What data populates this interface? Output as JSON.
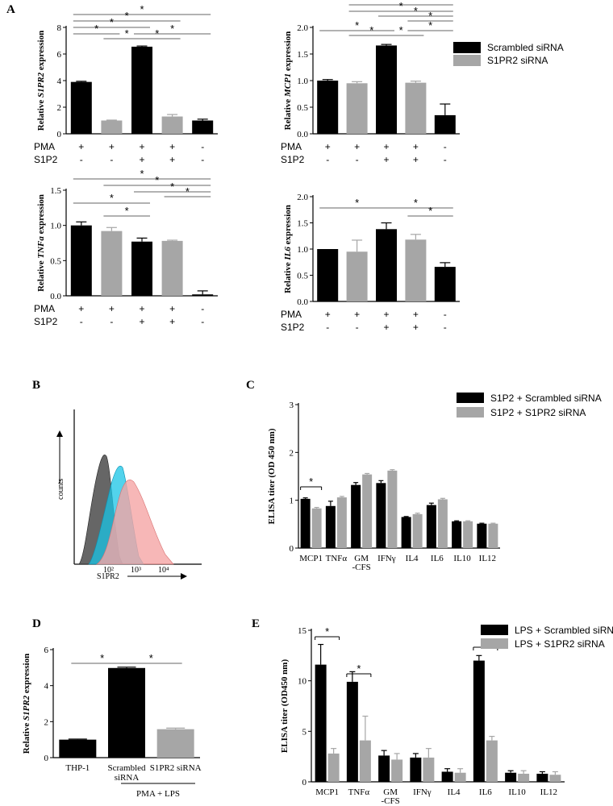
{
  "colors": {
    "black_bar": "#000000",
    "gray_bar": "#a6a6a6",
    "axis": "#000000",
    "flow_gray": "#555555",
    "flow_cyan": "#18c4e6",
    "flow_pink": "#f5a5a5"
  },
  "panels": {
    "A": "A",
    "B": "B",
    "C": "C",
    "D": "D",
    "E": "E"
  },
  "legends": {
    "A": [
      "Scrambled siRNA",
      "S1PR2 siRNA"
    ],
    "C": [
      "S1P2 + Scrambled siRNA",
      "S1P2 + S1PR2 siRNA"
    ],
    "E": [
      "LPS + Scrambled siRNA",
      "LPS + S1PR2 siRNA"
    ]
  },
  "conditions": {
    "PMA": {
      "label": "PMA",
      "signs": [
        "+",
        "+",
        "+",
        "+",
        "-"
      ]
    },
    "S1P2": {
      "label": "S1P2",
      "signs": [
        "-",
        "-",
        "+",
        "+",
        "-"
      ]
    }
  },
  "significance_marker": "*",
  "flow": {
    "xlabel": "S1PR2",
    "ylabel": "counts",
    "ticks": [
      "10²",
      "10³",
      "10⁴"
    ]
  },
  "panel_D_group_label": "PMA + LPS",
  "chart_data": [
    {
      "id": "A1",
      "type": "bar",
      "ylabel_italic": "S1PR2",
      "ylabel_pre": "Relative ",
      "ylabel_post": " expression",
      "ylim": [
        0,
        8
      ],
      "yticks": [
        "0",
        "2",
        "4",
        "6",
        "8"
      ],
      "values": [
        3.9,
        1.0,
        6.55,
        1.3,
        1.0
      ],
      "errors": [
        0.05,
        0.03,
        0.05,
        0.15,
        0.1
      ],
      "colors": [
        "black",
        "gray",
        "black",
        "gray",
        "black"
      ],
      "sig": [
        [
          0,
          4
        ],
        [
          0,
          3
        ],
        [
          0,
          2
        ],
        [
          0,
          1
        ],
        [
          1,
          2
        ],
        [
          2,
          3
        ],
        [
          2,
          4
        ]
      ]
    },
    {
      "id": "A2",
      "type": "bar",
      "ylabel_italic": "MCP1",
      "ylabel_pre": "Relative ",
      "ylabel_post": " expression",
      "ylim": [
        0,
        2.0
      ],
      "yticks": [
        "0.0",
        "0.5",
        "1.0",
        "1.5",
        "2.0"
      ],
      "values": [
        1.0,
        0.95,
        1.66,
        0.96,
        0.35
      ],
      "errors": [
        0.02,
        0.03,
        0.02,
        0.03,
        0.21
      ],
      "colors": [
        "black",
        "gray",
        "black",
        "gray",
        "black"
      ],
      "sig": [
        [
          1,
          4
        ],
        [
          1,
          4
        ],
        [
          2,
          4
        ],
        [
          3,
          4
        ],
        [
          0,
          2
        ],
        [
          1,
          2
        ],
        [
          2,
          3
        ],
        [
          3,
          4
        ]
      ]
    },
    {
      "id": "A3",
      "type": "bar",
      "ylabel_italic": "TNFa",
      "ylabel_pre": "Relative ",
      "ylabel_post": " expression",
      "ylim": [
        0,
        1.5
      ],
      "yticks": [
        "0.0",
        "0.5",
        "1.0",
        "1.5"
      ],
      "values": [
        1.0,
        0.92,
        0.77,
        0.78,
        0.02
      ],
      "errors": [
        0.05,
        0.05,
        0.05,
        0.01,
        0.05
      ],
      "colors": [
        "black",
        "gray",
        "black",
        "gray",
        "black"
      ],
      "sig": [
        [
          0,
          4
        ],
        [
          1,
          4
        ],
        [
          2,
          4
        ],
        [
          3,
          4
        ],
        [
          0,
          2
        ],
        [
          1,
          2
        ]
      ]
    },
    {
      "id": "A4",
      "type": "bar",
      "ylabel_italic": "IL6",
      "ylabel_pre": "Relative ",
      "ylabel_post": " expression",
      "ylim": [
        0,
        2.0
      ],
      "yticks": [
        "0.0",
        "0.5",
        "1.0",
        "1.5",
        "2.0"
      ],
      "values": [
        1.0,
        0.95,
        1.38,
        1.18,
        0.66
      ],
      "errors": [
        0.0,
        0.22,
        0.12,
        0.1,
        0.08
      ],
      "colors": [
        "black",
        "gray",
        "black",
        "gray",
        "black"
      ],
      "sig": [
        [
          0,
          2
        ],
        [
          2,
          4
        ],
        [
          3,
          4
        ]
      ]
    },
    {
      "id": "C",
      "type": "bar",
      "ylabel": "ELISA titer (OD 450 nm)",
      "ylim": [
        0,
        3
      ],
      "yticks": [
        "0",
        "1",
        "2",
        "3"
      ],
      "categories": [
        "MCP1",
        "TNFα",
        "GM\n-CFS",
        "IFNγ",
        "IL4",
        "IL6",
        "IL10",
        "IL12"
      ],
      "series": [
        {
          "name": "S1P2 + Scrambled siRNA",
          "values": [
            1.03,
            0.88,
            1.32,
            1.36,
            0.65,
            0.9,
            0.56,
            0.51
          ],
          "errors": [
            0.02,
            0.1,
            0.05,
            0.05,
            0.01,
            0.04,
            0.01,
            0.01
          ]
        },
        {
          "name": "S1P2 + S1PR2 siRNA",
          "values": [
            0.83,
            1.06,
            1.54,
            1.62,
            0.71,
            1.02,
            0.56,
            0.51
          ],
          "errors": [
            0.02,
            0.02,
            0.02,
            0.02,
            0.02,
            0.02,
            0.01,
            0.01
          ]
        }
      ],
      "sig": [
        0
      ]
    },
    {
      "id": "D",
      "type": "bar",
      "ylabel_italic": "S1PR2",
      "ylabel_pre": "Relative ",
      "ylabel_post": " expression",
      "ylim": [
        0,
        6
      ],
      "yticks": [
        "0",
        "2",
        "4",
        "6"
      ],
      "categories": [
        "THP-1",
        "Scrambled\nsiRNA",
        "S1PR2 siRNA"
      ],
      "values": [
        1.0,
        4.98,
        1.58
      ],
      "errors": [
        0.03,
        0.05,
        0.06
      ],
      "colors": [
        "black",
        "black",
        "gray"
      ],
      "sig": [
        [
          0,
          1
        ],
        [
          1,
          2
        ]
      ]
    },
    {
      "id": "E",
      "type": "bar",
      "ylabel": "ELISA titer (OD450 nm)",
      "ylim": [
        0,
        15
      ],
      "yticks": [
        "0",
        "5",
        "10",
        "15"
      ],
      "categories": [
        "MCP1",
        "TNFα",
        "GM\n-CFS",
        "IFNγ",
        "IL4",
        "IL6",
        "IL10",
        "IL12"
      ],
      "series": [
        {
          "name": "LPS + Scrambled siRNA",
          "values": [
            11.6,
            9.9,
            2.6,
            2.4,
            1.0,
            12.0,
            0.9,
            0.8
          ],
          "errors": [
            2.0,
            1.0,
            0.5,
            0.4,
            0.3,
            0.5,
            0.2,
            0.2
          ]
        },
        {
          "name": "LPS + S1PR2 siRNA",
          "values": [
            2.8,
            4.1,
            2.2,
            2.4,
            0.9,
            4.1,
            0.8,
            0.7
          ],
          "errors": [
            0.5,
            2.4,
            0.6,
            0.9,
            0.4,
            0.4,
            0.3,
            0.3
          ]
        }
      ],
      "sig": [
        0,
        1,
        5
      ]
    }
  ]
}
